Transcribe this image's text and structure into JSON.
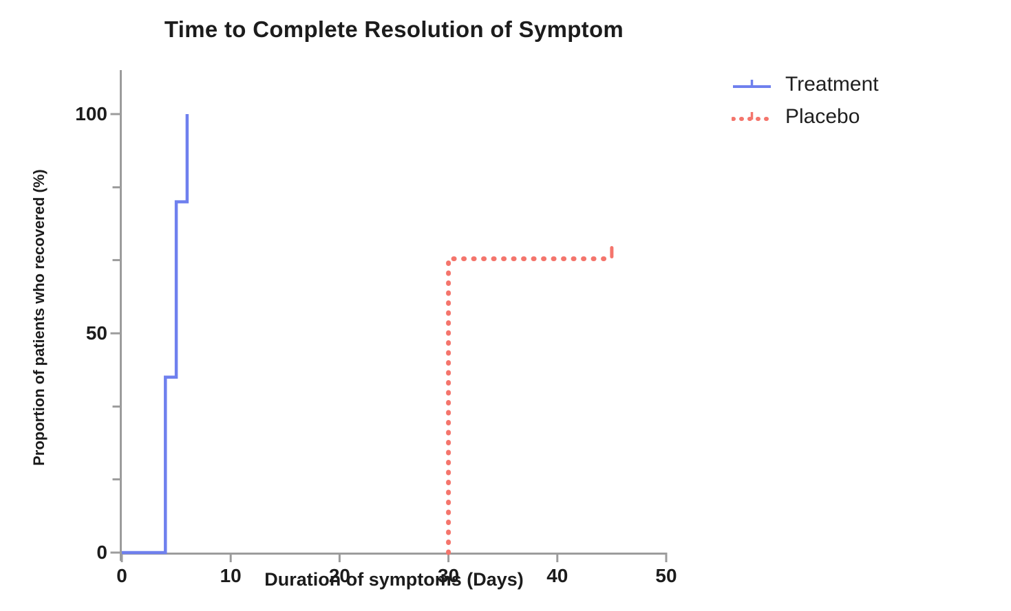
{
  "chart_data": {
    "type": "line",
    "subtype": "kaplan-meier-step",
    "title": "Time to Complete Resolution of Symptom",
    "xlabel": "Duration of symptoms (Days)",
    "ylabel": "Proportion of patients who recovered (%)",
    "xlim": [
      0,
      50
    ],
    "ylim": [
      0,
      100
    ],
    "x_ticks": [
      0,
      10,
      20,
      30,
      40,
      50
    ],
    "y_ticks": [
      0,
      50,
      100
    ],
    "y_minor_ticks": [
      16.7,
      33.3,
      66.7,
      83.3
    ],
    "grid": false,
    "legend_position": "top-right",
    "background_color": "#ffffff",
    "axis_color": "#9c9c9c",
    "text_color": "#1c1c1c",
    "series": [
      {
        "name": "Treatment",
        "color": "#6f80ee",
        "line_style": "solid",
        "points": [
          [
            0,
            0
          ],
          [
            4,
            0
          ],
          [
            4,
            40
          ],
          [
            5,
            40
          ],
          [
            5,
            80
          ],
          [
            6,
            80
          ],
          [
            6,
            100
          ]
        ],
        "censor_ticks": []
      },
      {
        "name": "Placebo",
        "color": "#f4756c",
        "line_style": "dotted",
        "points": [
          [
            30,
            0
          ],
          [
            30,
            67
          ],
          [
            45,
            67
          ]
        ],
        "censor_ticks": [
          [
            45,
            67
          ]
        ]
      }
    ]
  }
}
